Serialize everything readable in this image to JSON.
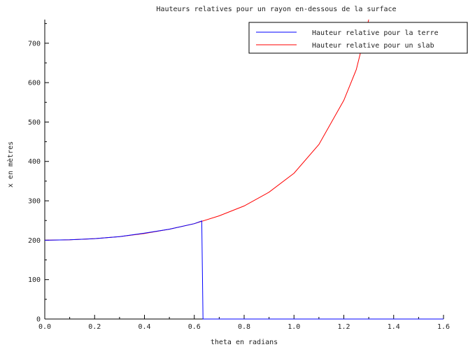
{
  "chart_data": {
    "type": "line",
    "title": "Hauteurs relatives pour un rayon en-dessous de la surface",
    "xlabel": "theta en radians",
    "ylabel": "x en mètres",
    "xlim": [
      0,
      1.6
    ],
    "ylim": [
      0,
      760
    ],
    "x_ticks": [
      "0.0",
      "0.2",
      "0.4",
      "0.6",
      "0.8",
      "1.0",
      "1.2",
      "1.4",
      "1.6"
    ],
    "y_ticks": [
      "0",
      "100",
      "200",
      "300",
      "400",
      "500",
      "600",
      "700"
    ],
    "grid": false,
    "legend_position": "top-right",
    "series": [
      {
        "name": "Hauteur relative pour la terre",
        "color": "#0000ff",
        "points": [
          [
            0,
            200
          ],
          [
            0.1,
            201
          ],
          [
            0.2,
            204
          ],
          [
            0.3,
            209
          ],
          [
            0.4,
            218
          ],
          [
            0.5,
            228
          ],
          [
            0.6,
            242
          ],
          [
            0.63,
            249
          ],
          [
            0.635,
            0
          ],
          [
            0.7,
            0
          ],
          [
            1.0,
            0
          ],
          [
            1.3,
            0
          ],
          [
            1.6,
            0
          ]
        ]
      },
      {
        "name": "Hauteur relative pour un slab",
        "color": "#ff0000",
        "points": [
          [
            0,
            200
          ],
          [
            0.1,
            201
          ],
          [
            0.2,
            204
          ],
          [
            0.3,
            209
          ],
          [
            0.4,
            217
          ],
          [
            0.5,
            228
          ],
          [
            0.6,
            242
          ],
          [
            0.7,
            262
          ],
          [
            0.8,
            287
          ],
          [
            0.9,
            322
          ],
          [
            1.0,
            370
          ],
          [
            1.1,
            443
          ],
          [
            1.2,
            555
          ],
          [
            1.25,
            633
          ],
          [
            1.3,
            760
          ]
        ]
      }
    ]
  }
}
